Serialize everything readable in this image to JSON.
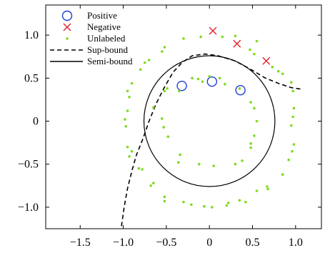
{
  "chart_data": {
    "type": "scatter",
    "xlim": [
      -1.9,
      1.3
    ],
    "ylim": [
      -1.25,
      1.35
    ],
    "x_ticks": [
      -1.5,
      -1.0,
      -0.5,
      0,
      0.5,
      1.0
    ],
    "x_tick_labels": [
      "−1.5",
      "−1.0",
      "−0.5",
      "0",
      "0.5",
      "1.0"
    ],
    "y_ticks": [
      -1.0,
      -0.5,
      0,
      0.5,
      1.0
    ],
    "y_tick_labels": [
      "−1.0",
      "−0.5",
      "0",
      "0.5",
      "1.0"
    ],
    "legend_position": "top-left",
    "series": [
      {
        "name": "Positive",
        "kind": "points",
        "marker": "circle-open",
        "color": "#1f3fd6",
        "points": [
          [
            -0.32,
            0.41
          ],
          [
            0.03,
            0.46
          ],
          [
            0.36,
            0.36
          ]
        ]
      },
      {
        "name": "Negative",
        "kind": "points",
        "marker": "x",
        "color": "#e0202a",
        "points": [
          [
            0.04,
            1.05
          ],
          [
            0.32,
            0.9
          ],
          [
            0.66,
            0.7
          ]
        ]
      },
      {
        "name": "Unlabeled",
        "kind": "points",
        "marker": "dot",
        "color": "#7ddc1f",
        "points": [
          [
            -0.98,
            0.02
          ],
          [
            -0.95,
            0.12
          ],
          [
            -0.97,
            -0.06
          ],
          [
            -0.95,
            -0.3
          ],
          [
            -0.9,
            -0.35
          ],
          [
            -0.93,
            -0.41
          ],
          [
            -0.82,
            -0.55
          ],
          [
            -0.78,
            -0.56
          ],
          [
            -0.65,
            -0.72
          ],
          [
            -0.68,
            -0.75
          ],
          [
            -0.52,
            -0.88
          ],
          [
            -0.52,
            -0.93
          ],
          [
            -0.3,
            -0.94
          ],
          [
            -0.21,
            -0.97
          ],
          [
            -0.06,
            -0.99
          ],
          [
            0.03,
            -1.0
          ],
          [
            0.22,
            -0.95
          ],
          [
            0.2,
            -0.98
          ],
          [
            0.35,
            -0.92
          ],
          [
            0.42,
            -0.94
          ],
          [
            0.55,
            -0.81
          ],
          [
            0.67,
            -0.76
          ],
          [
            0.68,
            -0.79
          ],
          [
            0.85,
            -0.62
          ],
          [
            0.92,
            -0.45
          ],
          [
            0.96,
            -0.35
          ],
          [
            0.98,
            -0.27
          ],
          [
            0.95,
            -0.05
          ],
          [
            0.97,
            0.05
          ],
          [
            0.98,
            0.15
          ],
          [
            0.97,
            0.35
          ],
          [
            0.95,
            0.45
          ],
          [
            0.85,
            0.55
          ],
          [
            0.8,
            0.58
          ],
          [
            0.73,
            0.63
          ],
          [
            0.52,
            0.78
          ],
          [
            0.47,
            0.83
          ],
          [
            0.55,
            0.93
          ],
          [
            0.3,
            0.99
          ],
          [
            0.15,
            0.98
          ],
          [
            -0.1,
            0.98
          ],
          [
            -0.3,
            0.96
          ],
          [
            -0.52,
            0.86
          ],
          [
            -0.55,
            0.81
          ],
          [
            -0.7,
            0.71
          ],
          [
            -0.75,
            0.68
          ],
          [
            -0.8,
            0.6
          ],
          [
            -0.9,
            0.44
          ],
          [
            -0.95,
            0.35
          ],
          [
            -0.93,
            0.28
          ],
          [
            -0.65,
            0.16
          ],
          [
            -0.52,
            0.35
          ],
          [
            -0.49,
            0.38
          ],
          [
            -0.55,
            0.03
          ],
          [
            -0.53,
            -0.07
          ],
          [
            -0.48,
            -0.18
          ],
          [
            -0.34,
            -0.39
          ],
          [
            -0.36,
            -0.48
          ],
          [
            -0.12,
            -0.5
          ],
          [
            0.05,
            -0.52
          ],
          [
            0.3,
            -0.5
          ],
          [
            0.38,
            -0.46
          ],
          [
            0.48,
            -0.31
          ],
          [
            0.48,
            -0.26
          ],
          [
            0.52,
            -0.17
          ],
          [
            0.55,
            0.0
          ],
          [
            0.52,
            0.15
          ],
          [
            0.48,
            0.22
          ],
          [
            0.35,
            0.38
          ],
          [
            0.18,
            0.43
          ],
          [
            0.12,
            0.5
          ],
          [
            0.0,
            0.52
          ],
          [
            -0.08,
            0.46
          ],
          [
            -0.13,
            0.49
          ],
          [
            -0.2,
            0.5
          ],
          [
            -0.35,
            0.35
          ]
        ]
      },
      {
        "name": "Sup-bound",
        "kind": "line",
        "style": "dashed",
        "color": "#000000",
        "points": [
          [
            -1.02,
            -1.22
          ],
          [
            -0.99,
            -1.0
          ],
          [
            -0.95,
            -0.78
          ],
          [
            -0.9,
            -0.58
          ],
          [
            -0.85,
            -0.4
          ],
          [
            -0.77,
            -0.2
          ],
          [
            -0.7,
            0.0
          ],
          [
            -0.62,
            0.2
          ],
          [
            -0.52,
            0.4
          ],
          [
            -0.42,
            0.57
          ],
          [
            -0.32,
            0.68
          ],
          [
            -0.2,
            0.76
          ],
          [
            -0.05,
            0.78
          ],
          [
            0.1,
            0.76
          ],
          [
            0.3,
            0.7
          ],
          [
            0.5,
            0.59
          ],
          [
            0.65,
            0.5
          ],
          [
            0.8,
            0.44
          ],
          [
            0.95,
            0.39
          ],
          [
            1.08,
            0.37
          ]
        ]
      },
      {
        "name": "Semi-bound",
        "kind": "circle",
        "style": "solid",
        "color": "#000000",
        "center": [
          0.0,
          0.0
        ],
        "radius": 0.76
      }
    ]
  }
}
